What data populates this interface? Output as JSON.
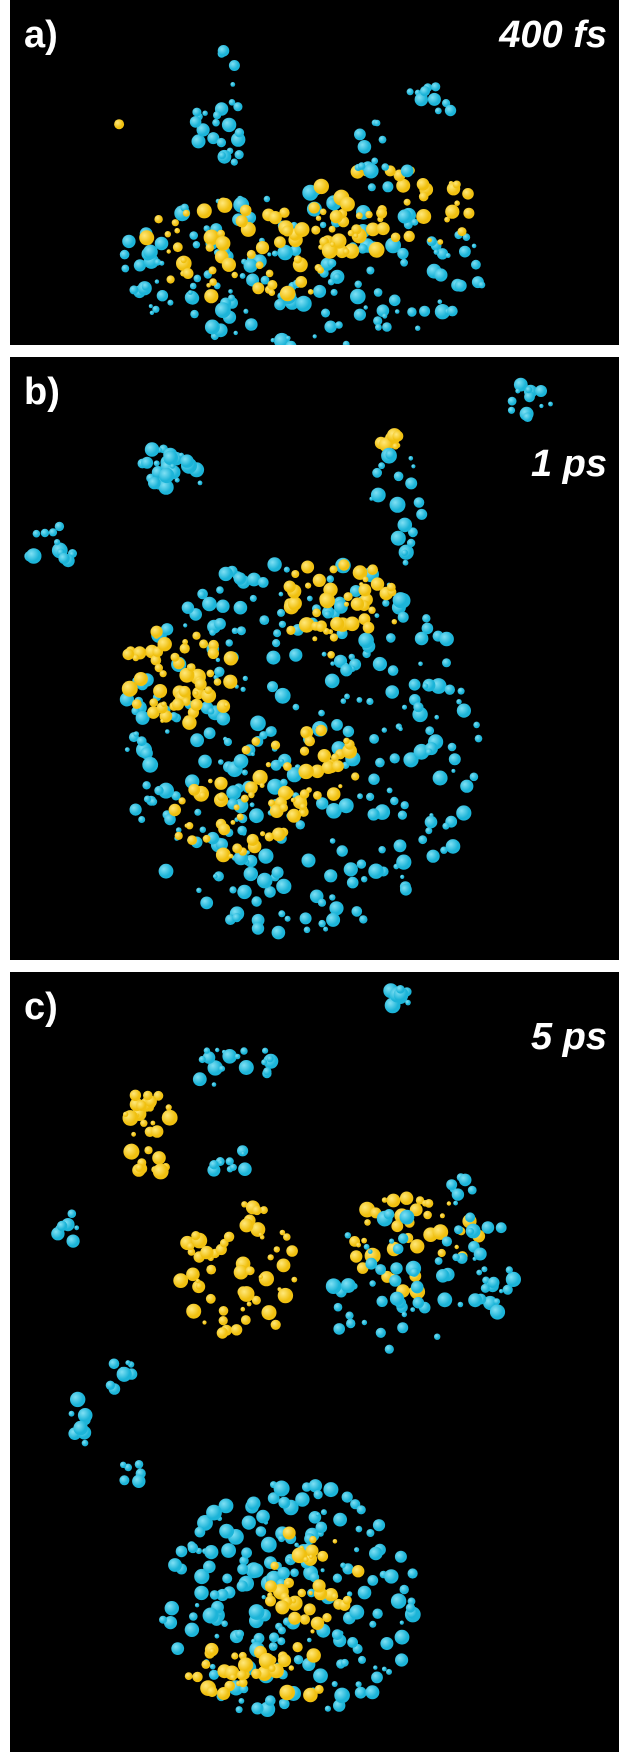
{
  "panels": [
    {
      "label": "a)",
      "time": "400 fs"
    },
    {
      "label": "b)",
      "time": "1 ps"
    },
    {
      "label": "c)",
      "time": "5 ps"
    }
  ]
}
